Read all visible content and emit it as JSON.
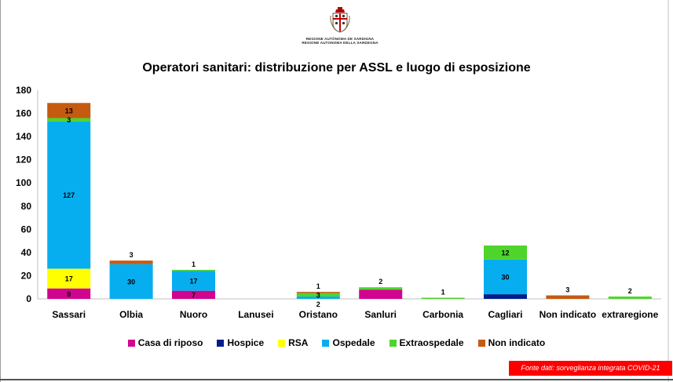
{
  "header": {
    "logo_line1": "REGIONE AUTÒNOMA DE SARDIGNA",
    "logo_line2": "REGIONE AUTONOMA DELLA SARDEGNA"
  },
  "colors": {
    "casa": "#d1048f",
    "hospice": "#001e8c",
    "rsa": "#ffff00",
    "ospedale": "#06aef0",
    "extra": "#4fd42c",
    "nonind": "#c55a11"
  },
  "chart_data": {
    "type": "bar",
    "stacked": true,
    "title": "Operatori sanitari: distribuzione per ASSL e luogo di esposizione",
    "categories": [
      "Sassari",
      "Olbia",
      "Nuoro",
      "Lanusei",
      "Oristano",
      "Sanluri",
      "Carbonia",
      "Cagliari",
      "Non indicato",
      "extraregione"
    ],
    "ylim": [
      0,
      180
    ],
    "yticks": [
      0,
      20,
      40,
      60,
      80,
      100,
      120,
      140,
      160,
      180
    ],
    "grid": false,
    "legend_position": "bottom",
    "series": [
      {
        "name": "Casa di riposo",
        "color_key": "casa",
        "values": [
          9,
          0,
          7,
          0,
          0,
          8,
          0,
          0,
          0,
          0
        ]
      },
      {
        "name": "Hospice",
        "color_key": "hospice",
        "values": [
          0,
          0,
          0,
          0,
          0,
          0,
          0,
          4,
          0,
          0
        ]
      },
      {
        "name": "RSA",
        "color_key": "rsa",
        "values": [
          17,
          0,
          0,
          0,
          0,
          0,
          0,
          0,
          0,
          0
        ]
      },
      {
        "name": "Ospedale",
        "color_key": "ospedale",
        "values": [
          127,
          30,
          17,
          0,
          2,
          0,
          0,
          30,
          0,
          0
        ]
      },
      {
        "name": "Extraospedale",
        "color_key": "extra",
        "values": [
          3,
          0,
          1,
          0,
          3,
          2,
          1,
          12,
          0,
          2
        ]
      },
      {
        "name": "Non indicato",
        "color_key": "nonind",
        "values": [
          13,
          3,
          0,
          0,
          1,
          0,
          0,
          0,
          3,
          0
        ]
      }
    ],
    "data_labels": [
      {
        "category": 0,
        "series": 0,
        "text": "9"
      },
      {
        "category": 0,
        "series": 2,
        "text": "17"
      },
      {
        "category": 0,
        "series": 3,
        "text": "127"
      },
      {
        "category": 0,
        "series": 4,
        "text": "3"
      },
      {
        "category": 0,
        "series": 5,
        "text": "13"
      },
      {
        "category": 1,
        "series": 3,
        "text": "30"
      },
      {
        "category": 1,
        "series": 5,
        "text": "3",
        "position": "above"
      },
      {
        "category": 2,
        "series": 0,
        "text": "7"
      },
      {
        "category": 2,
        "series": 3,
        "text": "17"
      },
      {
        "category": 2,
        "series": 4,
        "text": "1",
        "position": "above"
      },
      {
        "category": 4,
        "series": 3,
        "text": "2",
        "position": "below"
      },
      {
        "category": 4,
        "series": 4,
        "text": "3"
      },
      {
        "category": 4,
        "series": 5,
        "text": "1",
        "position": "above"
      },
      {
        "category": 5,
        "series": 4,
        "text": "2",
        "position": "above"
      },
      {
        "category": 6,
        "series": 4,
        "text": "1",
        "position": "above"
      },
      {
        "category": 7,
        "series": 3,
        "text": "30"
      },
      {
        "category": 7,
        "series": 4,
        "text": "12"
      },
      {
        "category": 8,
        "series": 5,
        "text": "3",
        "position": "above"
      },
      {
        "category": 9,
        "series": 4,
        "text": "2",
        "position": "above"
      }
    ]
  },
  "footer": {
    "source": "Fonte dati: sorveglianza integrata COVID-21"
  }
}
